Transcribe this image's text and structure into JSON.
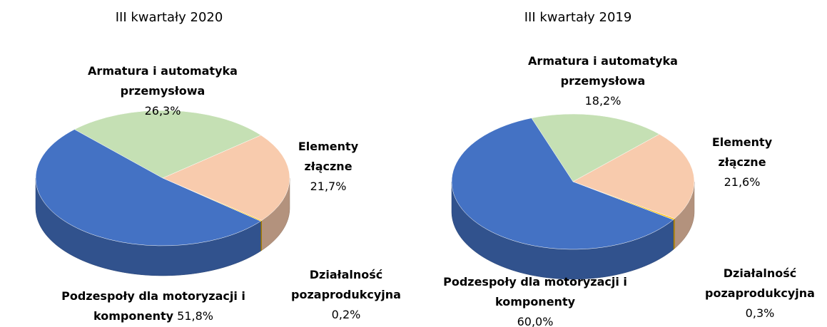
{
  "chart_data": [
    {
      "type": "pie",
      "title": "III kwartały 2020",
      "categories": [
        "Armatura i automatyka przemysłowa",
        "Elementy złączne",
        "Działalność pozaprodukcyjna",
        "Podzespoły dla motoryzacji i komponenty"
      ],
      "values": [
        26.3,
        21.7,
        0.2,
        51.8
      ],
      "value_labels": [
        "26,3%",
        "21,7%",
        "0,2%",
        "51,8%"
      ],
      "colors": [
        "#c5e0b4",
        "#f8cbad",
        "#ffc000",
        "#4472c4"
      ]
    },
    {
      "type": "pie",
      "title": "III kwartały 2019",
      "categories": [
        "Armatura i automatyka przemysłowa",
        "Elementy złączne",
        "Działalność pozaprodukcyjna",
        "Podzespoły dla motoryzacji i komponenty"
      ],
      "values": [
        18.2,
        21.6,
        0.3,
        60.0
      ],
      "value_labels": [
        "18,2%",
        "21,6%",
        "0,3%",
        "60,0%"
      ],
      "colors": [
        "#c5e0b4",
        "#f8cbad",
        "#ffc000",
        "#4472c4"
      ]
    }
  ]
}
